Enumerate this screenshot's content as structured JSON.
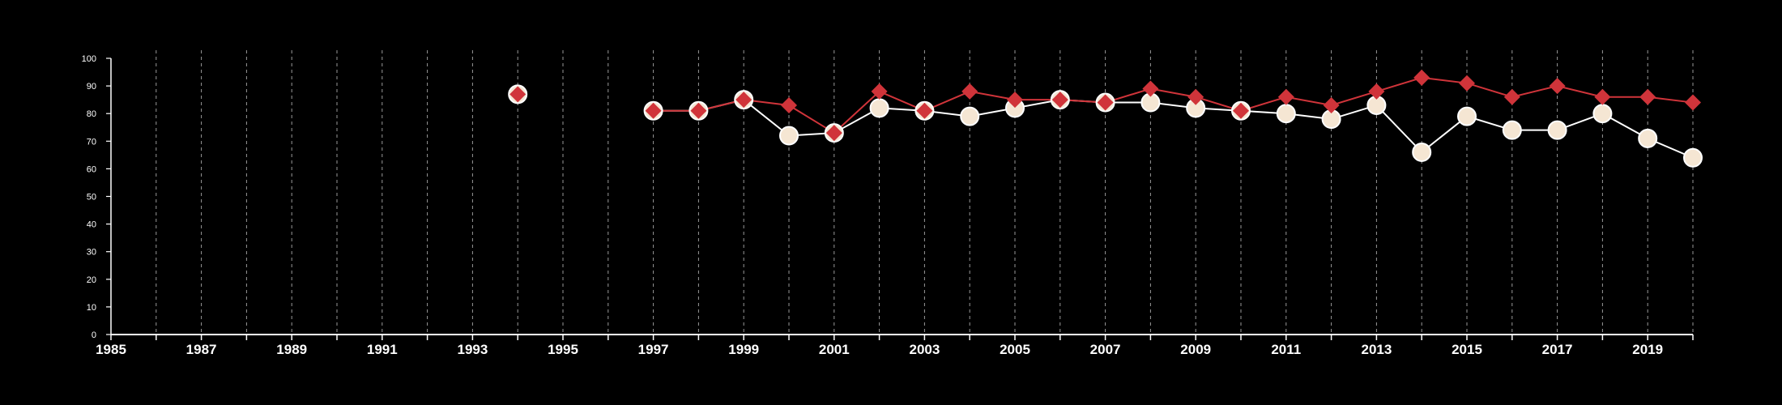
{
  "chart_data": {
    "type": "line",
    "title": "",
    "xlabel": "",
    "ylabel": "",
    "xlim": [
      1985,
      2020
    ],
    "ylim": [
      0,
      100
    ],
    "y_ticks": [
      0,
      10,
      20,
      30,
      40,
      50,
      60,
      70,
      80,
      90,
      100
    ],
    "x_tick_labels": [
      "1985",
      "1987",
      "1989",
      "1991",
      "1993",
      "1995",
      "1997",
      "1999",
      "2001",
      "2003",
      "2005",
      "2007",
      "2009",
      "2011",
      "2013",
      "2015",
      "2017",
      "2019"
    ],
    "grid": "vertical dashed lines at every year",
    "legend": "none",
    "background": "#000000",
    "series": [
      {
        "marker": "circle",
        "color": "#f5e6d3",
        "edge_color": "#ffffff",
        "points": [
          {
            "x": 1994,
            "y": 87
          },
          {
            "x": 1997,
            "y": 81
          },
          {
            "x": 1998,
            "y": 81
          },
          {
            "x": 1999,
            "y": 85
          },
          {
            "x": 2000,
            "y": 72
          },
          {
            "x": 2001,
            "y": 73
          },
          {
            "x": 2002,
            "y": 82
          },
          {
            "x": 2003,
            "y": 81
          },
          {
            "x": 2004,
            "y": 79
          },
          {
            "x": 2005,
            "y": 82
          },
          {
            "x": 2006,
            "y": 85
          },
          {
            "x": 2007,
            "y": 84
          },
          {
            "x": 2008,
            "y": 84
          },
          {
            "x": 2009,
            "y": 82
          },
          {
            "x": 2010,
            "y": 81
          },
          {
            "x": 2011,
            "y": 80
          },
          {
            "x": 2012,
            "y": 78
          },
          {
            "x": 2013,
            "y": 83
          },
          {
            "x": 2014,
            "y": 66
          },
          {
            "x": 2015,
            "y": 79
          },
          {
            "x": 2016,
            "y": 74
          },
          {
            "x": 2017,
            "y": 74
          },
          {
            "x": 2018,
            "y": 80
          },
          {
            "x": 2019,
            "y": 71
          },
          {
            "x": 2020,
            "y": 64
          }
        ]
      },
      {
        "marker": "diamond",
        "color": "#d0343a",
        "points": [
          {
            "x": 1994,
            "y": 87
          },
          {
            "x": 1997,
            "y": 81
          },
          {
            "x": 1998,
            "y": 81
          },
          {
            "x": 1999,
            "y": 85
          },
          {
            "x": 2000,
            "y": 83
          },
          {
            "x": 2001,
            "y": 73
          },
          {
            "x": 2002,
            "y": 88
          },
          {
            "x": 2003,
            "y": 81
          },
          {
            "x": 2004,
            "y": 88
          },
          {
            "x": 2005,
            "y": 85
          },
          {
            "x": 2006,
            "y": 85
          },
          {
            "x": 2007,
            "y": 84
          },
          {
            "x": 2008,
            "y": 89
          },
          {
            "x": 2009,
            "y": 86
          },
          {
            "x": 2010,
            "y": 81
          },
          {
            "x": 2011,
            "y": 86
          },
          {
            "x": 2012,
            "y": 83
          },
          {
            "x": 2013,
            "y": 88
          },
          {
            "x": 2014,
            "y": 93
          },
          {
            "x": 2015,
            "y": 91
          },
          {
            "x": 2016,
            "y": 86
          },
          {
            "x": 2017,
            "y": 90
          },
          {
            "x": 2018,
            "y": 86
          },
          {
            "x": 2019,
            "y": 86
          },
          {
            "x": 2020,
            "y": 84
          }
        ]
      }
    ]
  }
}
